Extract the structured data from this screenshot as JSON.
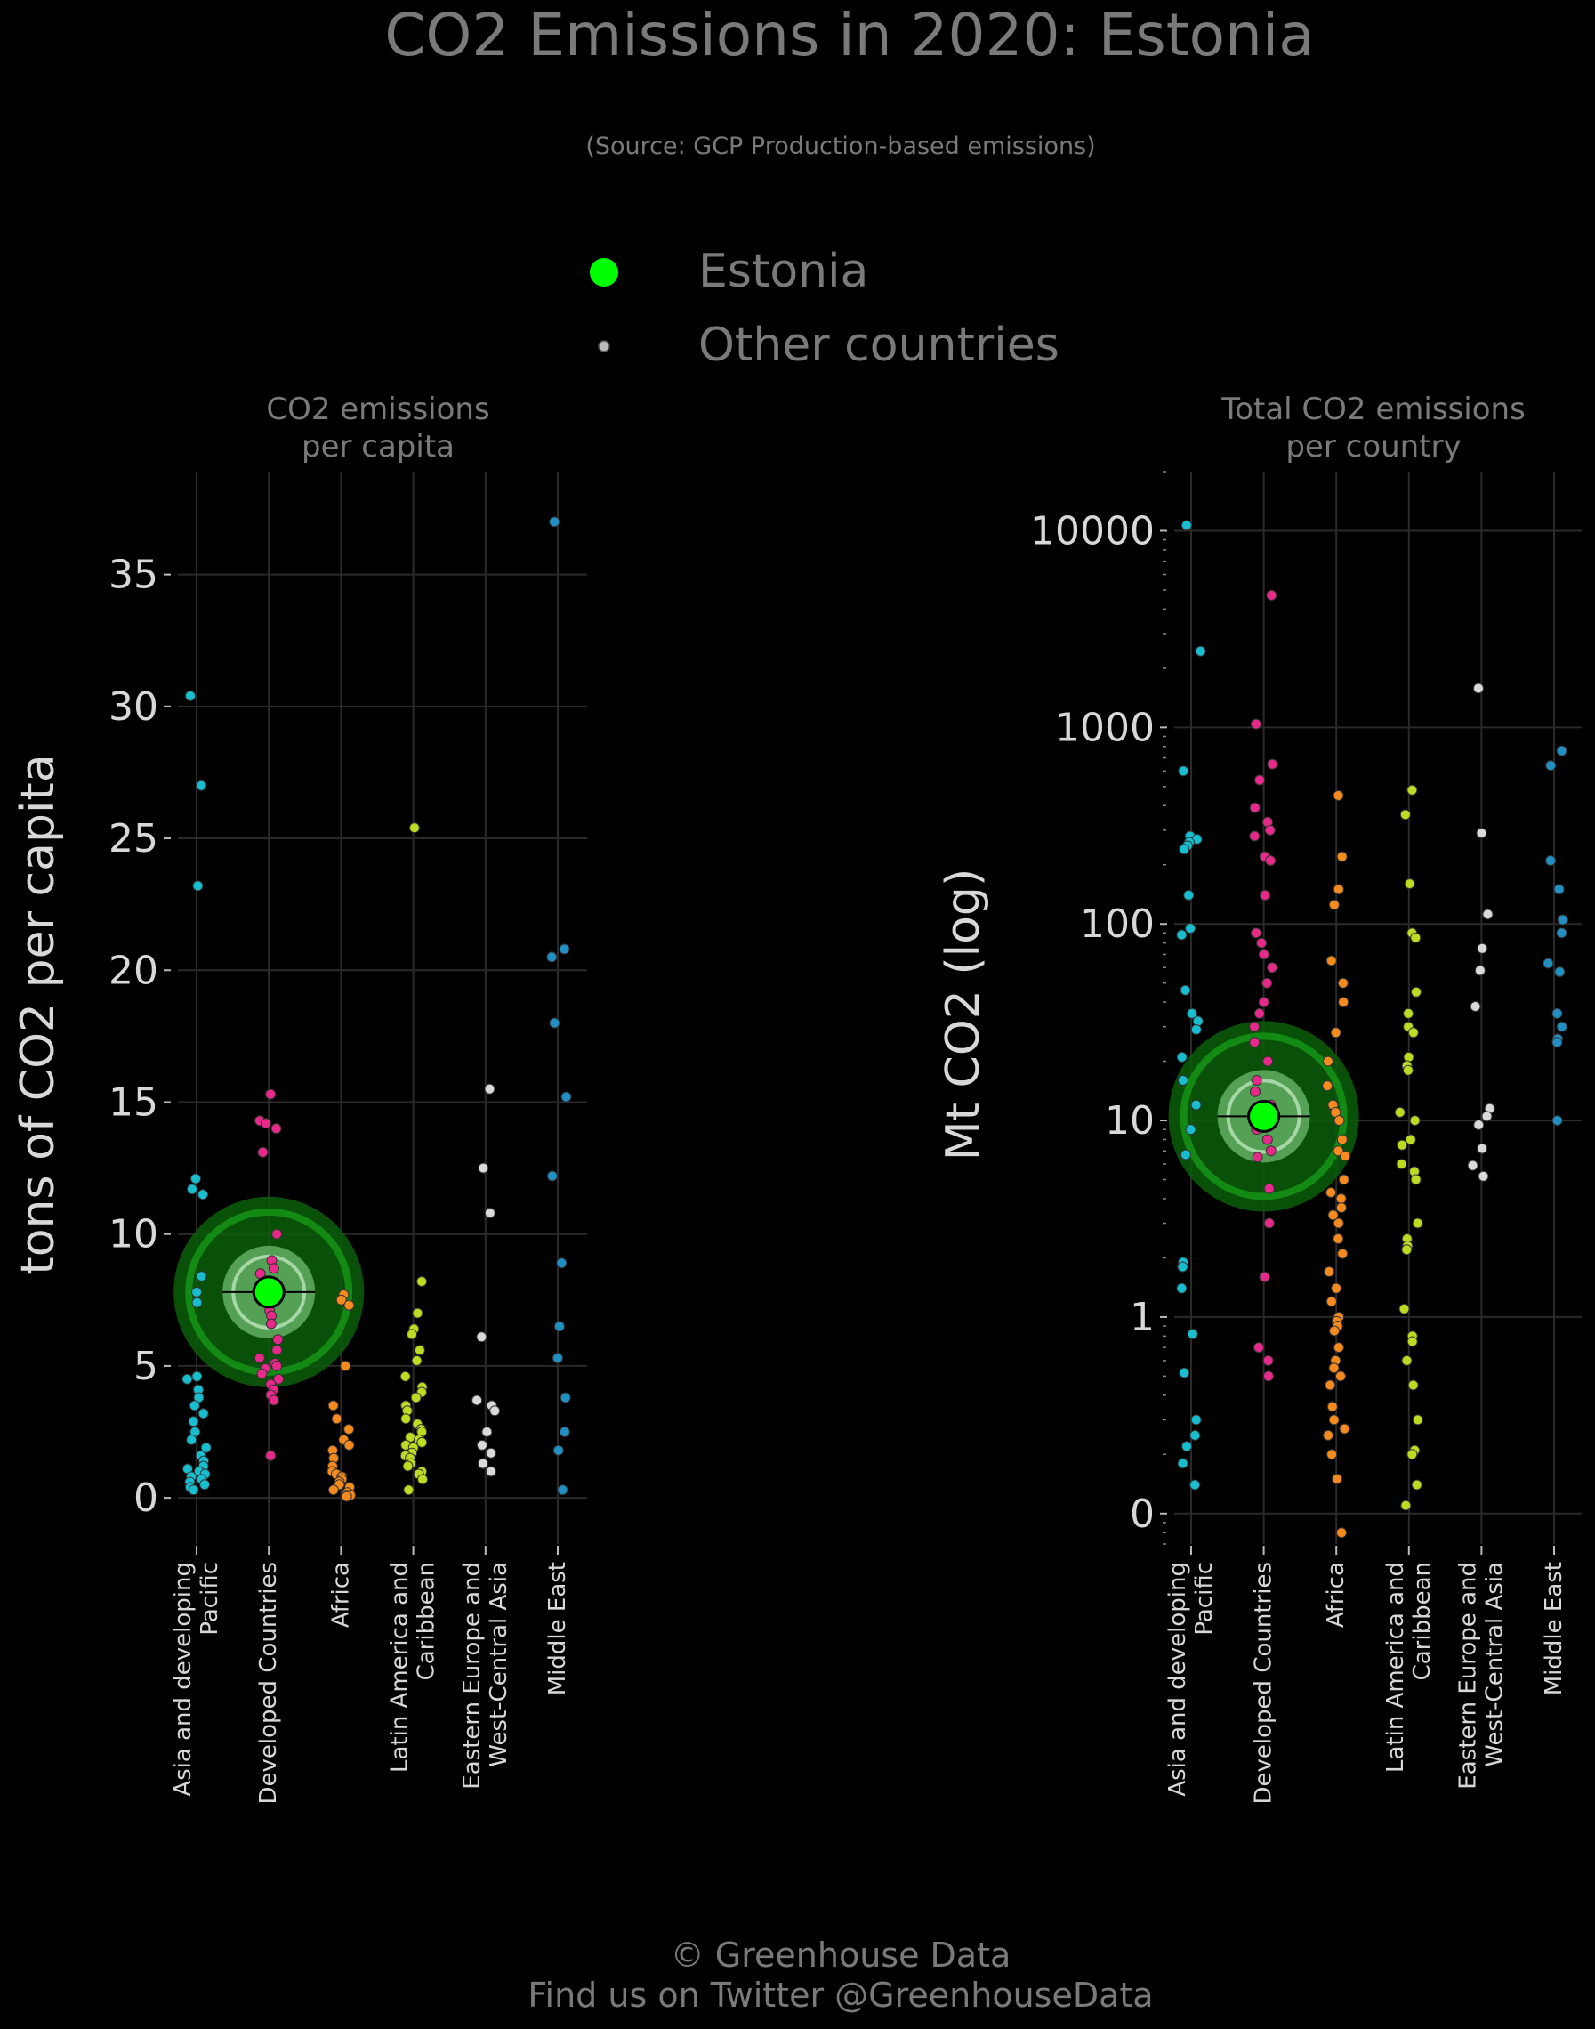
{
  "title": "CO2 Emissions in 2020: Estonia",
  "subtitle": "(Source: GCP Production-based emissions)",
  "legend": [
    {
      "label": "Estonia",
      "color": "#00ff00"
    },
    {
      "label": "Other countries",
      "color": "#bbbbbb"
    }
  ],
  "footer": {
    "line1": "© Greenhouse Data",
    "line2": "Find us on Twitter @GreenhouseData"
  },
  "colors": {
    "background": "#000000",
    "grid": "#2a2a2a",
    "title": "#7a7a7a",
    "tick": "#d8d8d8",
    "highlight": "#00ff00",
    "Asia and developing Pacific": "#17becf",
    "Developed Countries": "#e7298a",
    "Africa": "#f58a1f",
    "Latin America and Caribbean": "#bcdb22",
    "Eastern Europe and West-Central Asia": "#d9d9d9",
    "Middle East": "#1f8fc4"
  },
  "chart_data": [
    {
      "type": "scatter",
      "panel_title": [
        "CO2 emissions",
        "per capita"
      ],
      "ylabel": "tons of CO2 per capita",
      "yscale": "linear",
      "ylim": [
        -1.75,
        38.9
      ],
      "yticks": [
        0,
        5,
        10,
        15,
        20,
        25,
        30,
        35
      ],
      "grid": true,
      "categories": [
        "Asia and developing Pacific",
        "Developed Countries",
        "Africa",
        "Latin America and Caribbean",
        "Eastern Europe and West-Central Asia",
        "Middle East"
      ],
      "category_labels": [
        [
          "Asia and developing",
          "Pacific"
        ],
        [
          "Developed Countries"
        ],
        [
          "Africa"
        ],
        [
          "Latin America and",
          "Caribbean"
        ],
        [
          "Eastern Europe and",
          "West-Central Asia"
        ],
        [
          "Middle East"
        ]
      ],
      "highlight": {
        "name": "Estonia",
        "category": "Developed Countries",
        "value": 7.8
      },
      "series": [
        {
          "category": "Asia and developing Pacific",
          "values": [
            30.4,
            27.0,
            23.2,
            12.1,
            11.7,
            11.5,
            8.4,
            7.8,
            7.4,
            4.6,
            4.5,
            4.1,
            3.8,
            3.5,
            3.2,
            2.9,
            2.5,
            2.2,
            1.9,
            1.6,
            1.4,
            1.2,
            1.1,
            1.0,
            0.9,
            0.8,
            0.7,
            0.6,
            0.5,
            0.4,
            0.3
          ]
        },
        {
          "category": "Developed Countries",
          "values": [
            15.3,
            14.3,
            14.2,
            14.0,
            13.1,
            10.0,
            9.0,
            8.7,
            8.5,
            8.2,
            8.0,
            7.4,
            7.1,
            6.9,
            6.6,
            6.0,
            5.6,
            5.3,
            5.1,
            5.0,
            4.9,
            4.7,
            4.5,
            4.3,
            4.1,
            3.9,
            3.7,
            1.6
          ]
        },
        {
          "category": "Africa",
          "values": [
            7.7,
            7.5,
            7.3,
            5.0,
            3.5,
            3.0,
            2.6,
            2.2,
            2.0,
            1.8,
            1.5,
            1.2,
            1.0,
            0.9,
            0.8,
            0.7,
            0.6,
            0.5,
            0.4,
            0.3,
            0.2,
            0.1,
            0.1,
            0.05
          ]
        },
        {
          "category": "Latin America and Caribbean",
          "values": [
            25.4,
            8.2,
            7.0,
            6.4,
            6.2,
            5.6,
            5.2,
            4.6,
            4.2,
            4.0,
            3.8,
            3.5,
            3.3,
            3.0,
            2.8,
            2.6,
            2.5,
            2.3,
            2.2,
            2.1,
            2.0,
            1.9,
            1.7,
            1.6,
            1.5,
            1.3,
            1.2,
            1.0,
            0.9,
            0.7,
            0.3
          ]
        },
        {
          "category": "Eastern Europe and West-Central Asia",
          "values": [
            15.5,
            12.5,
            10.8,
            6.1,
            3.7,
            3.5,
            3.3,
            2.5,
            2.0,
            1.7,
            1.3,
            1.0
          ]
        },
        {
          "category": "Middle East",
          "values": [
            37.0,
            20.8,
            20.5,
            18.0,
            15.2,
            12.2,
            8.9,
            6.5,
            5.3,
            3.8,
            2.5,
            1.8,
            0.3
          ]
        }
      ]
    },
    {
      "type": "scatter",
      "panel_title": [
        "Total CO2 emissions",
        "per country"
      ],
      "ylabel": "Mt CO2 (log)",
      "yscale": "log",
      "ylim": [
        0.07,
        20000
      ],
      "yticks": [
        {
          "value": 0.1,
          "label": "0"
        },
        {
          "value": 1,
          "label": "1"
        },
        {
          "value": 10,
          "label": "10"
        },
        {
          "value": 100,
          "label": "100"
        },
        {
          "value": 1000,
          "label": "1000"
        },
        {
          "value": 10000,
          "label": "10000"
        }
      ],
      "grid": true,
      "categories": [
        "Asia and developing Pacific",
        "Developed Countries",
        "Africa",
        "Latin America and Caribbean",
        "Eastern Europe and West-Central Asia",
        "Middle East"
      ],
      "category_labels": [
        [
          "Asia and developing",
          "Pacific"
        ],
        [
          "Developed Countries"
        ],
        [
          "Africa"
        ],
        [
          "Latin America and",
          "Caribbean"
        ],
        [
          "Eastern Europe and",
          "West-Central Asia"
        ],
        [
          "Middle East"
        ]
      ],
      "highlight": {
        "name": "Estonia",
        "category": "Developed Countries",
        "value": 10.5
      },
      "series": [
        {
          "category": "Asia and developing Pacific",
          "values": [
            10668,
            2442,
            600,
            280,
            270,
            260,
            250,
            240,
            140,
            95,
            88,
            46,
            35,
            32,
            29,
            21,
            16,
            12,
            9,
            6.7,
            1.9,
            1.8,
            1.4,
            0.82,
            0.52,
            0.3,
            0.25,
            0.22,
            0.18,
            0.14
          ]
        },
        {
          "category": "Developed Countries",
          "values": [
            4700,
            1040,
            650,
            540,
            390,
            330,
            300,
            280,
            220,
            210,
            140,
            90,
            80,
            70,
            60,
            50,
            40,
            35,
            30,
            25,
            20,
            16,
            14,
            12,
            10,
            9,
            8,
            7,
            6.5,
            4.5,
            3.0,
            1.6,
            0.7,
            0.6,
            0.5
          ]
        },
        {
          "category": "Africa",
          "values": [
            450,
            220,
            150,
            125,
            65,
            50,
            40,
            28,
            20,
            15,
            12,
            11,
            10,
            8,
            7,
            6.6,
            5,
            4.3,
            4.0,
            3.6,
            3.3,
            3.0,
            2.5,
            2.1,
            1.7,
            1.4,
            1.2,
            1.0,
            0.95,
            0.9,
            0.85,
            0.7,
            0.6,
            0.55,
            0.5,
            0.45,
            0.35,
            0.3,
            0.27,
            0.25,
            0.2,
            0.15,
            0.08
          ]
        },
        {
          "category": "Latin America and Caribbean",
          "values": [
            480,
            360,
            160,
            90,
            85,
            45,
            35,
            30,
            28,
            21,
            19,
            18,
            11,
            10,
            8,
            7.5,
            6,
            5.5,
            5,
            3.0,
            2.5,
            2.3,
            2.2,
            1.1,
            0.8,
            0.75,
            0.6,
            0.45,
            0.3,
            0.21,
            0.2,
            0.14,
            0.11
          ]
        },
        {
          "category": "Eastern Europe and West-Central Asia",
          "values": [
            1580,
            290,
            112,
            75,
            58,
            38,
            11.5,
            10.5,
            9.5,
            7.2,
            5.9,
            5.2
          ]
        },
        {
          "category": "Middle East",
          "values": [
            760,
            640,
            210,
            150,
            105,
            90,
            63,
            57,
            35,
            30,
            26,
            25,
            10
          ]
        }
      ]
    }
  ]
}
